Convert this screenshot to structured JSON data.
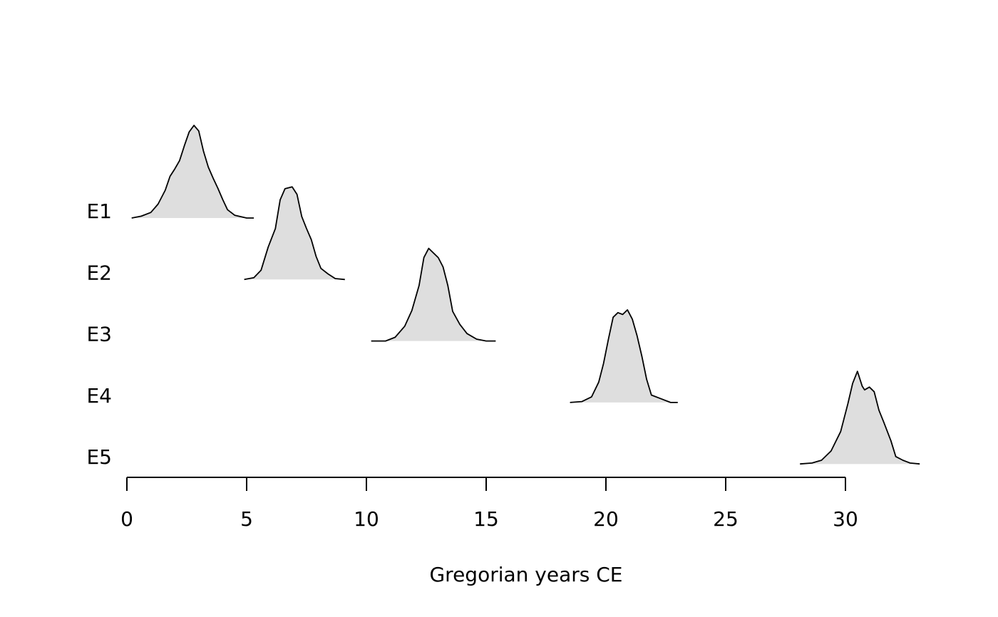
{
  "chart_data": {
    "type": "area",
    "title": "",
    "xlabel": "Gregorian years CE",
    "ylabel": "",
    "xlim": [
      0,
      30
    ],
    "xticks": [
      0,
      5,
      10,
      15,
      20,
      25,
      30
    ],
    "grid": false,
    "legend": "none",
    "fill_color": "#dedede",
    "line_color": "#000000",
    "series": [
      {
        "name": "E1",
        "density": [
          [
            0.2,
            0.0
          ],
          [
            0.6,
            0.02
          ],
          [
            1.0,
            0.06
          ],
          [
            1.3,
            0.15
          ],
          [
            1.6,
            0.3
          ],
          [
            1.8,
            0.45
          ],
          [
            2.0,
            0.53
          ],
          [
            2.2,
            0.62
          ],
          [
            2.4,
            0.78
          ],
          [
            2.6,
            0.93
          ],
          [
            2.8,
            1.0
          ],
          [
            3.0,
            0.94
          ],
          [
            3.2,
            0.72
          ],
          [
            3.4,
            0.55
          ],
          [
            3.6,
            0.43
          ],
          [
            3.8,
            0.32
          ],
          [
            4.0,
            0.2
          ],
          [
            4.2,
            0.09
          ],
          [
            4.5,
            0.03
          ],
          [
            5.0,
            0.0
          ],
          [
            5.3,
            0.0
          ]
        ]
      },
      {
        "name": "E2",
        "density": [
          [
            4.9,
            0.0
          ],
          [
            5.3,
            0.02
          ],
          [
            5.6,
            0.1
          ],
          [
            5.9,
            0.35
          ],
          [
            6.2,
            0.55
          ],
          [
            6.4,
            0.86
          ],
          [
            6.6,
            0.98
          ],
          [
            6.9,
            1.0
          ],
          [
            7.1,
            0.92
          ],
          [
            7.3,
            0.68
          ],
          [
            7.5,
            0.55
          ],
          [
            7.7,
            0.43
          ],
          [
            7.9,
            0.25
          ],
          [
            8.1,
            0.12
          ],
          [
            8.4,
            0.06
          ],
          [
            8.7,
            0.01
          ],
          [
            9.1,
            0.0
          ]
        ]
      },
      {
        "name": "E3",
        "density": [
          [
            10.2,
            0.0
          ],
          [
            10.8,
            0.0
          ],
          [
            11.2,
            0.04
          ],
          [
            11.6,
            0.16
          ],
          [
            11.9,
            0.33
          ],
          [
            12.2,
            0.6
          ],
          [
            12.4,
            0.9
          ],
          [
            12.6,
            1.0
          ],
          [
            12.8,
            0.95
          ],
          [
            13.0,
            0.9
          ],
          [
            13.2,
            0.8
          ],
          [
            13.4,
            0.6
          ],
          [
            13.6,
            0.32
          ],
          [
            13.9,
            0.18
          ],
          [
            14.2,
            0.08
          ],
          [
            14.6,
            0.02
          ],
          [
            15.0,
            0.0
          ],
          [
            15.4,
            0.0
          ]
        ]
      },
      {
        "name": "E4",
        "density": [
          [
            18.5,
            0.0
          ],
          [
            19.0,
            0.01
          ],
          [
            19.4,
            0.06
          ],
          [
            19.7,
            0.22
          ],
          [
            19.9,
            0.42
          ],
          [
            20.1,
            0.68
          ],
          [
            20.3,
            0.92
          ],
          [
            20.5,
            0.97
          ],
          [
            20.7,
            0.95
          ],
          [
            20.9,
            1.0
          ],
          [
            21.1,
            0.9
          ],
          [
            21.3,
            0.72
          ],
          [
            21.5,
            0.5
          ],
          [
            21.7,
            0.25
          ],
          [
            21.9,
            0.08
          ],
          [
            22.3,
            0.04
          ],
          [
            22.7,
            0.0
          ],
          [
            23.0,
            0.0
          ]
        ]
      },
      {
        "name": "E5",
        "density": [
          [
            28.1,
            0.0
          ],
          [
            28.6,
            0.01
          ],
          [
            29.0,
            0.04
          ],
          [
            29.4,
            0.14
          ],
          [
            29.8,
            0.35
          ],
          [
            30.1,
            0.65
          ],
          [
            30.3,
            0.87
          ],
          [
            30.5,
            1.0
          ],
          [
            30.7,
            0.84
          ],
          [
            30.8,
            0.8
          ],
          [
            31.0,
            0.83
          ],
          [
            31.2,
            0.78
          ],
          [
            31.4,
            0.58
          ],
          [
            31.6,
            0.45
          ],
          [
            31.9,
            0.25
          ],
          [
            32.1,
            0.08
          ],
          [
            32.4,
            0.04
          ],
          [
            32.7,
            0.01
          ],
          [
            33.1,
            0.0
          ]
        ]
      }
    ]
  }
}
